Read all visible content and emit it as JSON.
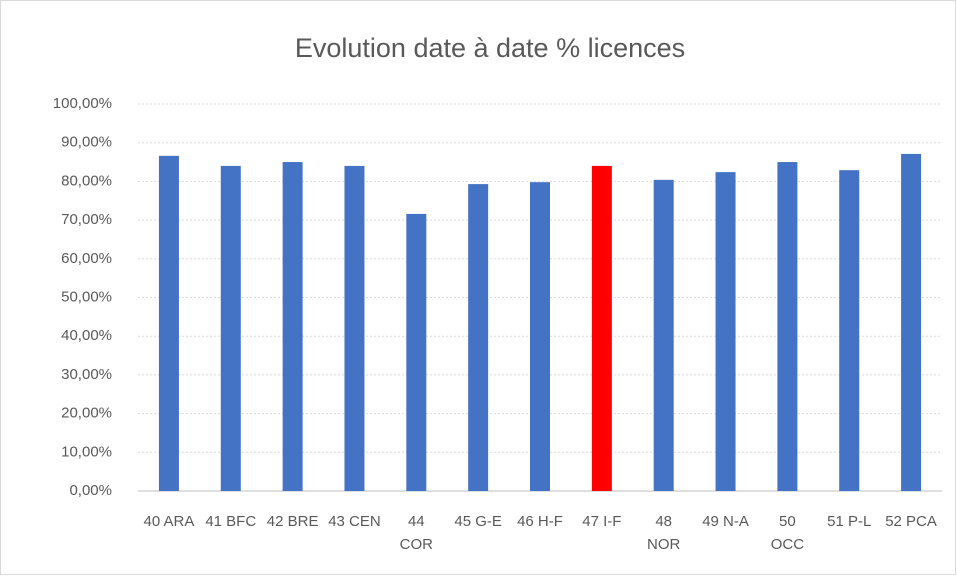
{
  "chart_data": {
    "type": "bar",
    "title": "Evolution date à date % licences",
    "categories": [
      "40 ARA",
      "41 BFC",
      "42 BRE",
      "43 CEN",
      "44 COR",
      "45 G-E",
      "46 H-F",
      "47 I-F",
      "48 NOR",
      "49 N-A",
      "50 OCC",
      "51 P-L",
      "52 PCA"
    ],
    "values": [
      86.6,
      84.0,
      85.0,
      84.0,
      71.6,
      79.3,
      79.8,
      84.0,
      80.4,
      82.4,
      85.0,
      82.9,
      87.1
    ],
    "colors": [
      "#4472c4",
      "#4472c4",
      "#4472c4",
      "#4472c4",
      "#4472c4",
      "#4472c4",
      "#4472c4",
      "#ff0000",
      "#4472c4",
      "#4472c4",
      "#4472c4",
      "#4472c4",
      "#4472c4"
    ],
    "ylim": [
      0,
      100
    ],
    "yticks": [
      {
        "value": 0,
        "label": "0,00%"
      },
      {
        "value": 10,
        "label": "10,00%"
      },
      {
        "value": 20,
        "label": "20,00%"
      },
      {
        "value": 30,
        "label": "30,00%"
      },
      {
        "value": 40,
        "label": "40,00%"
      },
      {
        "value": 50,
        "label": "50,00%"
      },
      {
        "value": 60,
        "label": "60,00%"
      },
      {
        "value": 70,
        "label": "70,00%"
      },
      {
        "value": 80,
        "label": "80,00%"
      },
      {
        "value": 90,
        "label": "90,00%"
      },
      {
        "value": 100,
        "label": "100,00%"
      }
    ],
    "grid": true
  }
}
